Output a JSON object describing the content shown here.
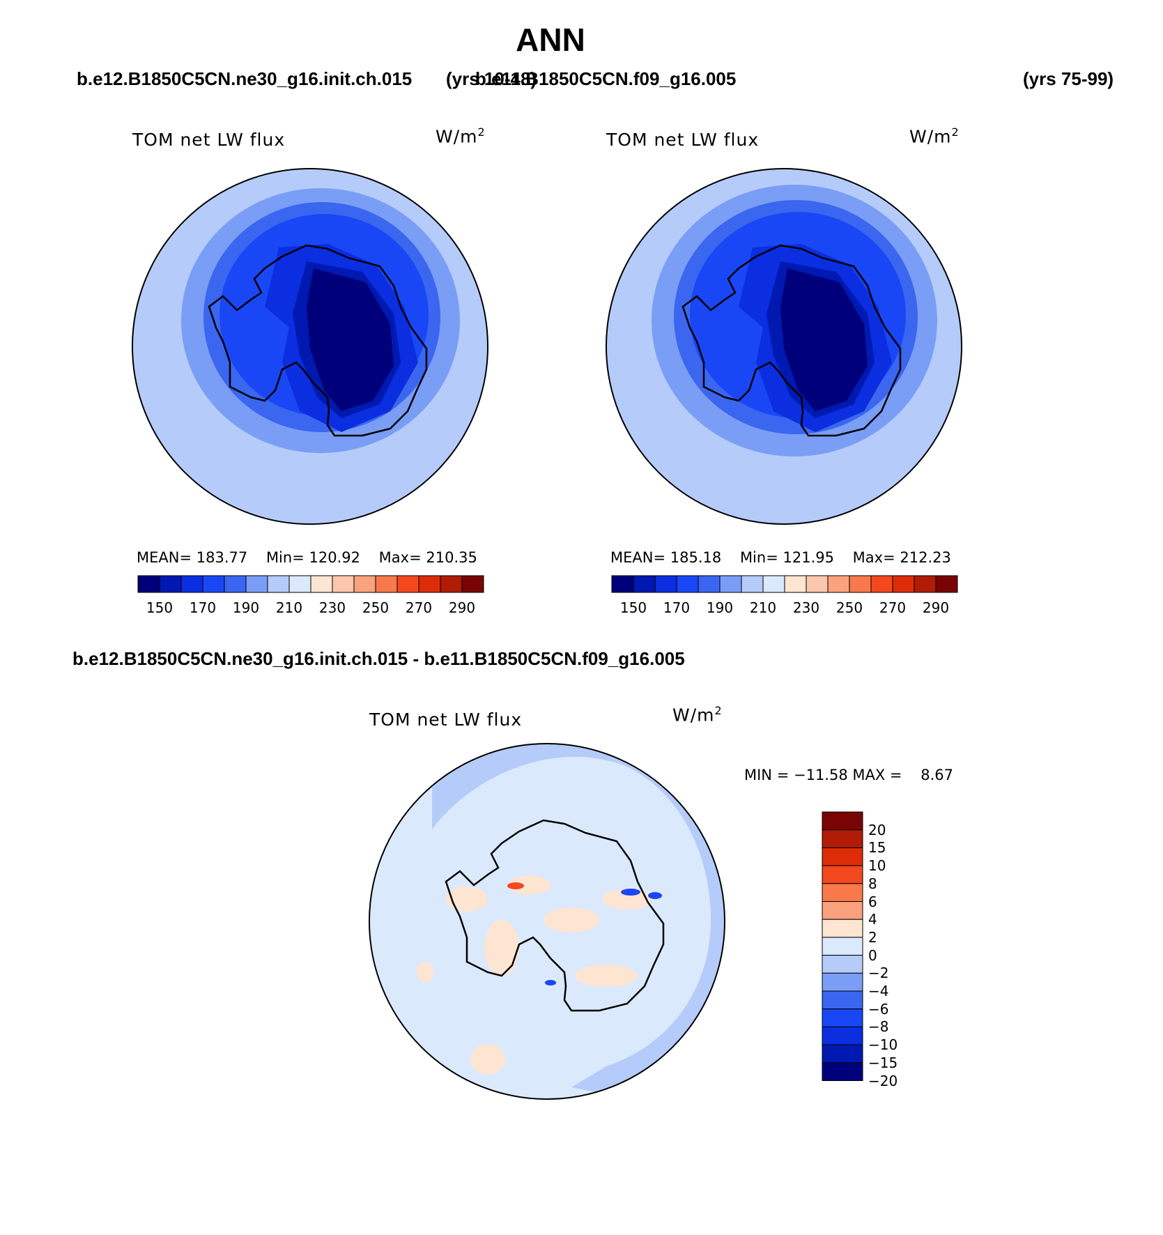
{
  "title": "ANN",
  "header": {
    "case1": "b.e12.B1850C5CN.ne30_g16.init.ch.015",
    "years1": "(yrs 10-48)",
    "case2": "b.e11.B1850C5CN.f09_g16.005",
    "years2": "(yrs 75-99)"
  },
  "panels": [
    {
      "label": "TOM net LW flux",
      "units": "W/m",
      "units_sup": "2",
      "mean": "183.77",
      "min": "120.92",
      "max": "210.35"
    },
    {
      "label": "TOM net LW flux",
      "units": "W/m",
      "units_sup": "2",
      "mean": "185.18",
      "min": "121.95",
      "max": "212.23"
    }
  ],
  "stat_labels": {
    "mean": "MEAN=",
    "min": "Min=",
    "max": "Max="
  },
  "colorbar_top": {
    "colors": [
      "#00007a",
      "#0019b0",
      "#0a2ee0",
      "#1a47f5",
      "#3a66f0",
      "#7a9ef5",
      "#b5ccfa",
      "#dbe9fd",
      "#fde5d2",
      "#fcc7ad",
      "#f9a27d",
      "#f7794c",
      "#f4481f",
      "#dc2d08",
      "#b01c05",
      "#7a0404"
    ],
    "ticks": [
      "150",
      "170",
      "190",
      "210",
      "230",
      "250",
      "270",
      "290"
    ]
  },
  "diff": {
    "header": "b.e12.B1850C5CN.ne30_g16.init.ch.015 - b.e11.B1850C5CN.f09_g16.005",
    "label": "TOM net LW flux",
    "units": "W/m",
    "units_sup": "2",
    "min_label": "MIN =",
    "min": "−11.58",
    "max_label": "MAX =",
    "max": "8.67"
  },
  "colorbar_diff": {
    "colors": [
      "#7a0404",
      "#b01c05",
      "#dc2d08",
      "#f4481f",
      "#f7794c",
      "#f9a27d",
      "#fde5d2",
      "#dbe9fd",
      "#b5ccfa",
      "#7a9ef5",
      "#3a66f0",
      "#1a47f5",
      "#0a2ee0",
      "#0019b0",
      "#00007a"
    ],
    "ticks": [
      "20",
      "15",
      "10",
      "8",
      "6",
      "4",
      "2",
      "0",
      "−2",
      "−4",
      "−6",
      "−8",
      "−10",
      "−15",
      "−20"
    ]
  }
}
